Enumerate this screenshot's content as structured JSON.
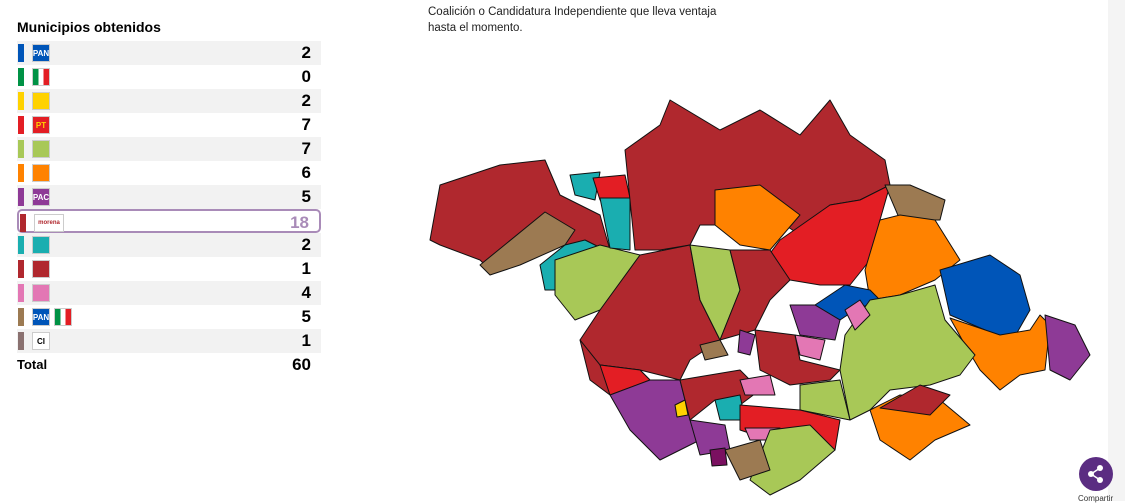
{
  "panel": {
    "title": "Municipios obtenidos",
    "rows": [
      {
        "stripe": "#0055b8",
        "logos": [
          {
            "text": "PAN",
            "bg": "#0055b8",
            "fg": "#ffffff"
          }
        ],
        "count": 2
      },
      {
        "stripe": "#009245",
        "logos": [
          {
            "bg": "linear-gradient(90deg,#009245 33%,#ffffff 33%,#ffffff 66%,#e31e24 66%)"
          }
        ],
        "count": 0
      },
      {
        "stripe": "#ffd200",
        "logos": [
          {
            "bg": "#ffd200"
          }
        ],
        "count": 2
      },
      {
        "stripe": "#e31e24",
        "logos": [
          {
            "text": "PT",
            "bg": "#e31e24",
            "fg": "#ffd200"
          }
        ],
        "count": 7
      },
      {
        "stripe": "#a8c857",
        "logos": [
          {
            "bg": "#a8c857"
          }
        ],
        "count": 7
      },
      {
        "stripe": "#ff8200",
        "logos": [
          {
            "bg": "#ff8200"
          }
        ],
        "count": 6
      },
      {
        "stripe": "#8e3a96",
        "logos": [
          {
            "text": "PAC",
            "bg": "#8e3a96",
            "fg": "#ffffff"
          }
        ],
        "count": 5
      },
      {
        "stripe": "#b0282e",
        "logos": [
          {
            "text": "morena",
            "bg": "#ffffff",
            "fg": "#b0282e"
          }
        ],
        "count": 18,
        "highlighted": true
      },
      {
        "stripe": "#1aaeb0",
        "logos": [
          {
            "bg": "#1aaeb0"
          }
        ],
        "count": 2
      },
      {
        "stripe": "#b0282e",
        "logos": [
          {
            "bg": "#b0282e"
          }
        ],
        "count": 1
      },
      {
        "stripe": "#e377b4",
        "logos": [
          {
            "bg": "#e377b4"
          }
        ],
        "count": 4
      },
      {
        "stripe": "#9c7a52",
        "logos": [
          {
            "text": "PAN",
            "bg": "#0055b8",
            "fg": "#ffffff"
          },
          {
            "bg": "linear-gradient(90deg,#009245 33%,#ffffff 33%,#ffffff 66%,#e31e24 66%)"
          }
        ],
        "count": 5
      },
      {
        "stripe": "#8a7170",
        "logos": [
          {
            "text": "CI",
            "bg": "#ffffff",
            "fg": "#000000"
          }
        ],
        "count": 1
      }
    ],
    "total": {
      "label": "Total",
      "value": 60
    }
  },
  "map": {
    "caption": [
      "Coalición o Candidatura Independiente que lleva ventaja",
      "hasta el momento."
    ]
  },
  "share": {
    "label": "Compartir"
  }
}
